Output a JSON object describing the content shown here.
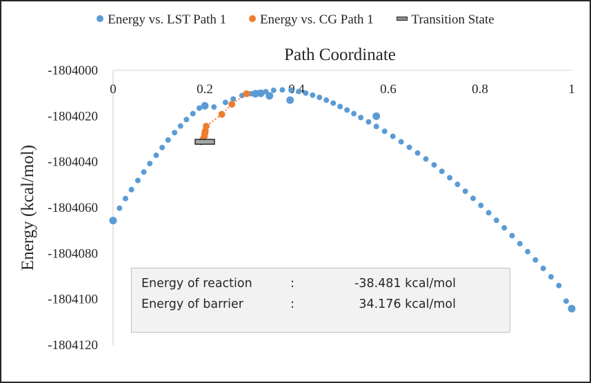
{
  "chart_data": {
    "type": "scatter",
    "title": "Path Coordinate",
    "xlabel": "Path Coordinate",
    "ylabel": "Energy  (kcal/mol)",
    "xlim": [
      0,
      1
    ],
    "ylim": [
      -1804120,
      -1804000
    ],
    "x_ticks": [
      "0",
      "0.2",
      "0.4",
      "0.6",
      "0.8",
      "1"
    ],
    "x_tick_values": [
      0,
      0.2,
      0.4,
      0.6,
      0.8,
      1
    ],
    "y_ticks": [
      "-1804000",
      "-1804020",
      "-1804040",
      "-1804060",
      "-1804080",
      "-1804100",
      "-1804120"
    ],
    "y_tick_values": [
      -1804000,
      -1804020,
      -1804040,
      -1804060,
      -1804080,
      -1804100,
      -1804120
    ],
    "x_axis_position": "top",
    "grid": false,
    "legend_position": "top",
    "series": [
      {
        "name": "Energy vs. LST Path 1",
        "color": "#5b9bd5",
        "marker": "circle",
        "points": [
          [
            0.0,
            -1804065.6
          ],
          [
            0.014,
            -1804060.2
          ],
          [
            0.027,
            -1804056.0
          ],
          [
            0.04,
            -1804052.1
          ],
          [
            0.054,
            -1804048.1
          ],
          [
            0.067,
            -1804044.4
          ],
          [
            0.08,
            -1804040.7
          ],
          [
            0.094,
            -1804037.1
          ],
          [
            0.107,
            -1804033.7
          ],
          [
            0.12,
            -1804030.4
          ],
          [
            0.134,
            -1804027.2
          ],
          [
            0.147,
            -1804024.3
          ],
          [
            0.16,
            -1804021.5
          ],
          [
            0.174,
            -1804018.9
          ],
          [
            0.188,
            -1804016.5
          ],
          [
            0.22,
            -1804016.0
          ],
          [
            0.245,
            -1804014.0
          ],
          [
            0.262,
            -1804012.5
          ],
          [
            0.281,
            -1804011.0
          ],
          [
            0.3,
            -1804010.2
          ],
          [
            0.316,
            -1804009.8
          ],
          [
            0.333,
            -1804009.3
          ],
          [
            0.35,
            -1804008.7
          ],
          [
            0.369,
            -1804008.5
          ],
          [
            0.388,
            -1804008.6
          ],
          [
            0.405,
            -1804009.2
          ],
          [
            0.42,
            -1804009.9
          ],
          [
            0.435,
            -1804010.8
          ],
          [
            0.45,
            -1804011.8
          ],
          [
            0.465,
            -1804013.0
          ],
          [
            0.48,
            -1804014.3
          ],
          [
            0.495,
            -1804015.8
          ],
          [
            0.51,
            -1804017.3
          ],
          [
            0.525,
            -1804018.9
          ],
          [
            0.54,
            -1804020.6
          ],
          [
            0.557,
            -1804022.5
          ],
          [
            0.574,
            -1804024.5
          ],
          [
            0.592,
            -1804026.6
          ],
          [
            0.61,
            -1804028.8
          ],
          [
            0.628,
            -1804031.2
          ],
          [
            0.646,
            -1804033.6
          ],
          [
            0.664,
            -1804036.1
          ],
          [
            0.682,
            -1804038.7
          ],
          [
            0.7,
            -1804041.3
          ],
          [
            0.717,
            -1804044.1
          ],
          [
            0.734,
            -1804046.9
          ],
          [
            0.751,
            -1804049.8
          ],
          [
            0.768,
            -1804052.8
          ],
          [
            0.785,
            -1804055.9
          ],
          [
            0.802,
            -1804059.0
          ],
          [
            0.819,
            -1804062.2
          ],
          [
            0.836,
            -1804065.5
          ],
          [
            0.853,
            -1804068.8
          ],
          [
            0.87,
            -1804072.2
          ],
          [
            0.887,
            -1804075.7
          ],
          [
            0.904,
            -1804079.2
          ],
          [
            0.921,
            -1804082.8
          ],
          [
            0.938,
            -1804086.5
          ],
          [
            0.955,
            -1804090.2
          ],
          [
            0.972,
            -1804094.0
          ],
          [
            0.988,
            -1804100.8
          ],
          [
            1.0,
            -1804104.1
          ]
        ],
        "highlight_points": [
          [
            0.0,
            -1804065.6
          ],
          [
            0.2,
            -1804015.5
          ],
          [
            0.31,
            -1804010.2
          ],
          [
            0.322,
            -1804010.0
          ],
          [
            0.341,
            -1804011.1
          ],
          [
            0.386,
            -1804013.0
          ],
          [
            0.574,
            -1804020.0
          ],
          [
            1.0,
            -1804104.1
          ]
        ]
      },
      {
        "name": "Energy vs. CG Path 1",
        "color": "#ed7d31",
        "marker": "circle",
        "line": "dotted",
        "points": [
          [
            0.192,
            -1804031.2
          ],
          [
            0.196,
            -1804030.1
          ],
          [
            0.199,
            -1804028.8
          ],
          [
            0.2,
            -1804027.6
          ],
          [
            0.201,
            -1804026.5
          ],
          [
            0.203,
            -1804024.4
          ],
          [
            0.237,
            -1804019.2
          ],
          [
            0.259,
            -1804014.8
          ],
          [
            0.291,
            -1804010.2
          ]
        ]
      },
      {
        "name": "Transition State",
        "color": "#a6a6a6",
        "marker": "bar",
        "points": [
          [
            0.2,
            -1804031.2
          ]
        ]
      }
    ],
    "annotations": [
      {
        "label": "Energy of reaction",
        "separator": ":",
        "value": "-38.481 kcal/mol"
      },
      {
        "label": "Energy of barrier",
        "separator": ":",
        "value": "34.176 kcal/mol"
      }
    ]
  },
  "legend": [
    {
      "label": "Energy vs. LST Path 1",
      "color": "#5b9bd5",
      "marker": "circle"
    },
    {
      "label": "Energy vs. CG Path 1",
      "color": "#ed7d31",
      "marker": "circle"
    },
    {
      "label": "Transition State",
      "color": "#a6a6a6",
      "marker": "bar"
    }
  ],
  "stats": {
    "reaction_label": "Energy of reaction",
    "reaction_sep": ":",
    "reaction_value": "-38.481 kcal/mol",
    "barrier_label": "Energy of barrier",
    "barrier_sep": ":",
    "barrier_value": "34.176 kcal/mol"
  }
}
